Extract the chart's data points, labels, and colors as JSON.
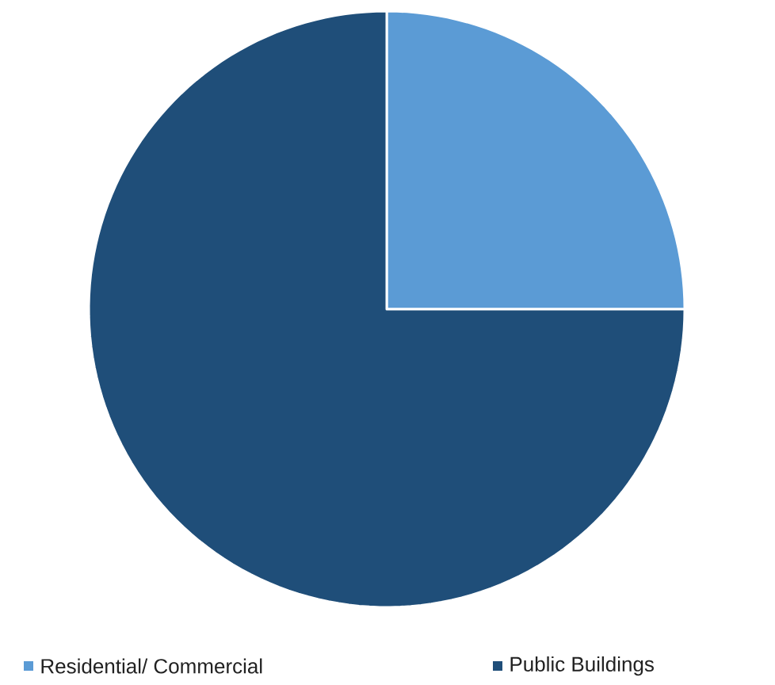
{
  "chart_data": {
    "type": "pie",
    "categories": [
      "Residential/ Commercial",
      "Public Buildings"
    ],
    "values": [
      25,
      75
    ],
    "colors": [
      "#5b9bd5",
      "#1f4e79"
    ],
    "legend": "bottom"
  }
}
